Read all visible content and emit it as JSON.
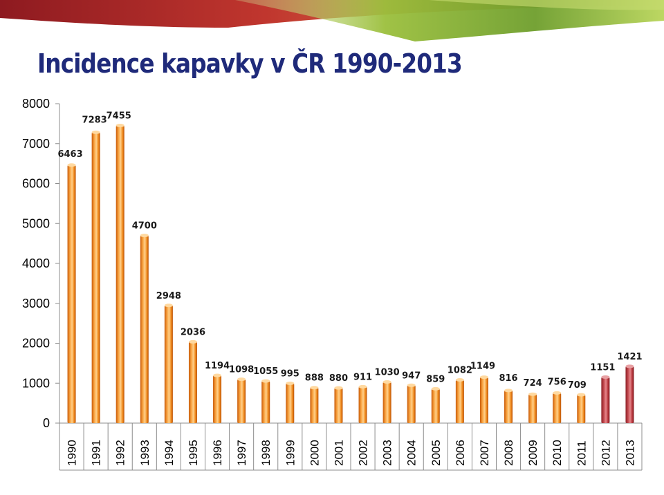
{
  "chart_data": {
    "type": "bar",
    "title": "Incidence kapavky v ČR 1990-2013",
    "xlabel": "",
    "ylabel": "",
    "ylim": [
      0,
      8000
    ],
    "yticks": [
      0,
      1000,
      2000,
      3000,
      4000,
      5000,
      6000,
      7000,
      8000
    ],
    "grid": false,
    "legend": "none",
    "categories": [
      "1990",
      "1991",
      "1992",
      "1993",
      "1994",
      "1995",
      "1996",
      "1997",
      "1998",
      "1999",
      "2000",
      "2001",
      "2002",
      "2003",
      "2004",
      "2005",
      "2006",
      "2007",
      "2008",
      "2009",
      "2010",
      "2011",
      "2012",
      "2013"
    ],
    "values": [
      6463,
      7283,
      7455,
      4700,
      2948,
      2036,
      1194,
      1098,
      1055,
      995,
      888,
      880,
      911,
      1030,
      947,
      859,
      1082,
      1149,
      816,
      724,
      756,
      709,
      1151,
      1421
    ],
    "series_colors": {
      "default": "#f08a1c",
      "highlight": "#b8363d",
      "highlight_categories": [
        "2012",
        "2013"
      ]
    }
  },
  "decor": {
    "top_band_colors": [
      "#b3262d",
      "#7aa632",
      "#a8c63a"
    ]
  }
}
